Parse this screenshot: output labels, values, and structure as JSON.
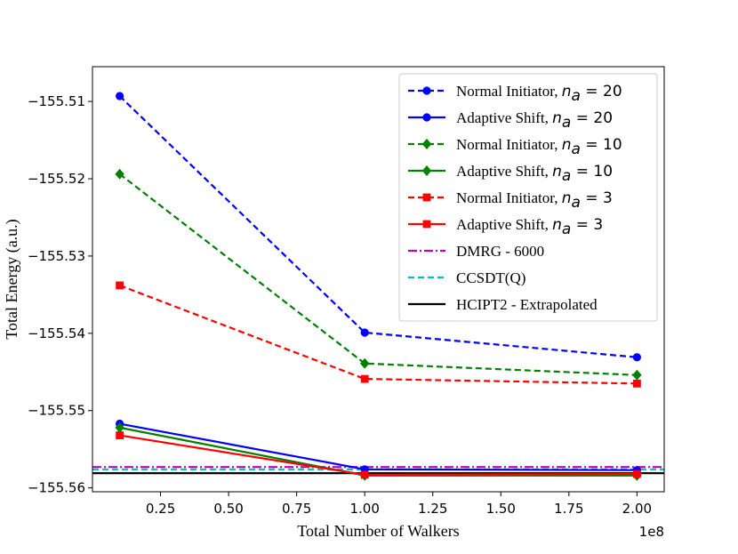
{
  "chart_data": {
    "type": "line",
    "title": "",
    "xlabel": "Total Number of Walkers",
    "ylabel": "Total Energy (a.u.)",
    "x_offset_label": "1e8",
    "xlim": [
      0.0,
      2.1
    ],
    "ylim": [
      -155.5605,
      -155.5055
    ],
    "xticks": [
      0.25,
      0.5,
      0.75,
      1.0,
      1.25,
      1.5,
      1.75,
      2.0
    ],
    "xtick_labels": [
      "0.25",
      "0.50",
      "0.75",
      "1.00",
      "1.25",
      "1.50",
      "1.75",
      "2.00"
    ],
    "yticks": [
      -155.51,
      -155.52,
      -155.53,
      -155.54,
      -155.55,
      -155.56
    ],
    "ytick_labels": [
      "−155.51",
      "−155.52",
      "−155.53",
      "−155.54",
      "−155.55",
      "−155.56"
    ],
    "legend_position": "top-right",
    "series": [
      {
        "name": "Normal Initiator, ",
        "math": "n_a = 20",
        "math_base": "n",
        "math_sub": "a",
        "math_rest": " = 20",
        "color": "#0000ff",
        "linestyle": "dashed",
        "marker": "circle",
        "x": [
          0.1,
          1.0,
          2.0
        ],
        "y": [
          -155.5093,
          -155.5399,
          -155.5431
        ]
      },
      {
        "name": "Adaptive Shift, ",
        "math": "n_a = 20",
        "math_base": "n",
        "math_sub": "a",
        "math_rest": " = 20",
        "color": "#0000ff",
        "linestyle": "solid",
        "marker": "circle",
        "x": [
          0.1,
          1.0,
          2.0
        ],
        "y": [
          -155.5517,
          -155.5576,
          -155.5577
        ]
      },
      {
        "name": "Normal Initiator, ",
        "math": "n_a = 10",
        "math_base": "n",
        "math_sub": "a",
        "math_rest": " = 10",
        "color": "#008000",
        "linestyle": "dashed",
        "marker": "diamond",
        "x": [
          0.1,
          1.0,
          2.0
        ],
        "y": [
          -155.5194,
          -155.5439,
          -155.5454
        ]
      },
      {
        "name": "Adaptive Shift, ",
        "math": "n_a = 10",
        "math_base": "n",
        "math_sub": "a",
        "math_rest": " = 10",
        "color": "#008000",
        "linestyle": "solid",
        "marker": "diamond",
        "x": [
          0.1,
          1.0,
          2.0
        ],
        "y": [
          -155.5522,
          -155.5584,
          -155.5584
        ]
      },
      {
        "name": "Normal Initiator, ",
        "math": "n_a = 3",
        "math_base": "n",
        "math_sub": "a",
        "math_rest": " = 3",
        "color": "#ff0000",
        "linestyle": "dashed",
        "marker": "square",
        "x": [
          0.1,
          1.0,
          2.0
        ],
        "y": [
          -155.5338,
          -155.5459,
          -155.5465
        ]
      },
      {
        "name": "Adaptive Shift, ",
        "math": "n_a = 3",
        "math_base": "n",
        "math_sub": "a",
        "math_rest": " = 3",
        "color": "#ff0000",
        "linestyle": "solid",
        "marker": "square",
        "x": [
          0.1,
          1.0,
          2.0
        ],
        "y": [
          -155.5532,
          -155.5583,
          -155.5582
        ]
      }
    ],
    "reference_lines": [
      {
        "name": "DMRG - 6000",
        "color": "#bf00bf",
        "linestyle": "dashdot",
        "y": -155.5573
      },
      {
        "name": "CCSDT(Q)",
        "color": "#00bfbf",
        "linestyle": "dashed",
        "y": -155.5576
      },
      {
        "name": "HCIPT2 - Extrapolated",
        "color": "#000000",
        "linestyle": "solid",
        "y": -155.5581
      }
    ]
  }
}
